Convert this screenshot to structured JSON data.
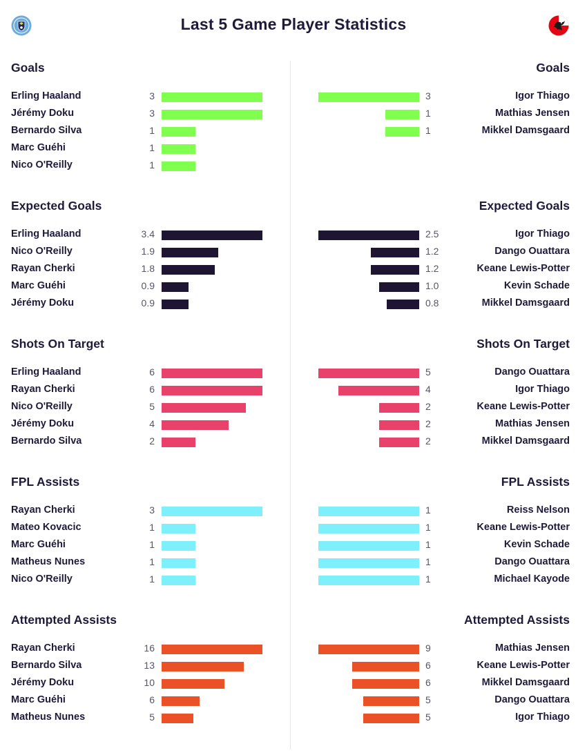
{
  "title": "Last 5 Game Player Statistics",
  "home_badge": {
    "icon": "home-club-crest-icon",
    "color": "#6cabdd"
  },
  "away_badge": {
    "icon": "away-club-crest-icon",
    "color": "#e30613"
  },
  "chart_data": [
    {
      "type": "bar",
      "title": "Goals",
      "color": "#80ff4f",
      "home": {
        "players": [
          "Erling Haaland",
          "Jérémy Doku",
          "Bernardo Silva",
          "Marc Guéhi",
          "Nico O'Reilly"
        ],
        "values": [
          3,
          3,
          1,
          1,
          1
        ]
      },
      "away": {
        "players": [
          "Igor Thiago",
          "Mathias Jensen",
          "Mikkel Damsgaard"
        ],
        "values": [
          3,
          1,
          1
        ]
      }
    },
    {
      "type": "bar",
      "title": "Expected Goals",
      "color": "#1e1533",
      "home": {
        "players": [
          "Erling Haaland",
          "Nico O'Reilly",
          "Rayan Cherki",
          "Marc Guéhi",
          "Jérémy Doku"
        ],
        "values": [
          3.4,
          1.9,
          1.8,
          0.9,
          0.9
        ]
      },
      "away": {
        "players": [
          "Igor Thiago",
          "Dango Ouattara",
          "Keane Lewis-Potter",
          "Kevin Schade",
          "Mikkel Damsgaard"
        ],
        "values": [
          2.5,
          1.2,
          1.2,
          1.0,
          0.8
        ]
      }
    },
    {
      "type": "bar",
      "title": "Shots On Target",
      "color": "#e8426a",
      "home": {
        "players": [
          "Erling Haaland",
          "Rayan Cherki",
          "Nico O'Reilly",
          "Jérémy Doku",
          "Bernardo Silva"
        ],
        "values": [
          6,
          6,
          5,
          4,
          2
        ]
      },
      "away": {
        "players": [
          "Dango Ouattara",
          "Igor Thiago",
          "Keane Lewis-Potter",
          "Mathias Jensen",
          "Mikkel Damsgaard"
        ],
        "values": [
          5,
          4,
          2,
          2,
          2
        ]
      }
    },
    {
      "type": "bar",
      "title": "FPL Assists",
      "color": "#7ef0fb",
      "home": {
        "players": [
          "Rayan Cherki",
          "Mateo Kovacic",
          "Marc Guéhi",
          "Matheus Nunes",
          "Nico O'Reilly"
        ],
        "values": [
          3,
          1,
          1,
          1,
          1
        ]
      },
      "away": {
        "players": [
          "Reiss Nelson",
          "Keane Lewis-Potter",
          "Kevin Schade",
          "Dango Ouattara",
          "Michael Kayode"
        ],
        "values": [
          1,
          1,
          1,
          1,
          1
        ]
      }
    },
    {
      "type": "bar",
      "title": "Attempted Assists",
      "color": "#eb5126",
      "home": {
        "players": [
          "Rayan Cherki",
          "Bernardo Silva",
          "Jérémy Doku",
          "Marc Guéhi",
          "Matheus Nunes"
        ],
        "values": [
          16,
          13,
          10,
          6,
          5
        ]
      },
      "away": {
        "players": [
          "Mathias Jensen",
          "Keane Lewis-Potter",
          "Mikkel Damsgaard",
          "Dango Ouattara",
          "Igor Thiago"
        ],
        "values": [
          9,
          6,
          6,
          5,
          5
        ]
      }
    }
  ]
}
